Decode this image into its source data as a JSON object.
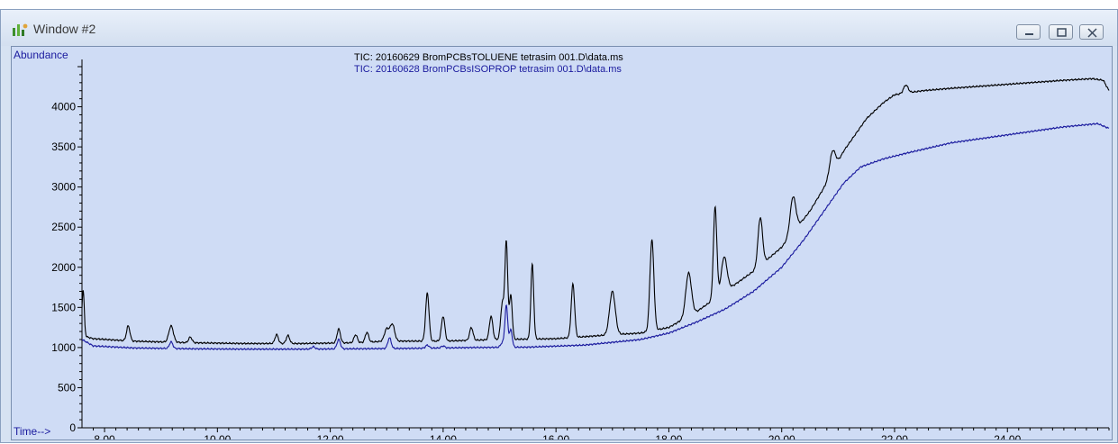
{
  "window": {
    "title": "Window #2",
    "controls": [
      "minimize-icon",
      "restore-icon",
      "close-icon"
    ]
  },
  "colors": {
    "series1": "#000000",
    "series2": "#1a1a9e",
    "plot_bg": "#cfdcf5",
    "axis": "#000000"
  },
  "chart_data": {
    "type": "line",
    "ylabel": "Abundance",
    "xlabel": "Time-->",
    "xlim": [
      7.6,
      25.8
    ],
    "ylim": [
      0,
      4500
    ],
    "x_ticks": [
      "8.00",
      "10.00",
      "12.00",
      "14.00",
      "16.00",
      "18.00",
      "20.00",
      "22.00",
      "24.00"
    ],
    "y_ticks": [
      "0",
      "500",
      "1000",
      "1500",
      "2000",
      "2500",
      "3000",
      "3500",
      "4000"
    ],
    "grid": false,
    "legend": "top-center",
    "series": [
      {
        "name": "TIC: 20160629 BromPCBsTOLUENE tetrasim 001.D\\data.ms",
        "baseline": [
          [
            7.6,
            1150
          ],
          [
            7.8,
            1110
          ],
          [
            8.5,
            1080
          ],
          [
            9.5,
            1060
          ],
          [
            10.5,
            1050
          ],
          [
            11.5,
            1050
          ],
          [
            12.5,
            1060
          ],
          [
            13.0,
            1080
          ],
          [
            14.0,
            1080
          ],
          [
            15.0,
            1100
          ],
          [
            16.0,
            1110
          ],
          [
            17.0,
            1160
          ],
          [
            17.5,
            1180
          ],
          [
            18.0,
            1250
          ],
          [
            18.5,
            1450
          ],
          [
            19.0,
            1700
          ],
          [
            19.5,
            1950
          ],
          [
            20.0,
            2250
          ],
          [
            20.5,
            2700
          ],
          [
            20.8,
            3050
          ],
          [
            21.1,
            3450
          ],
          [
            21.5,
            3850
          ],
          [
            21.8,
            4050
          ],
          [
            22.0,
            4150
          ],
          [
            22.5,
            4200
          ],
          [
            23.0,
            4230
          ],
          [
            24.0,
            4280
          ],
          [
            25.0,
            4330
          ],
          [
            25.5,
            4350
          ],
          [
            25.7,
            4330
          ],
          [
            25.8,
            4200
          ]
        ],
        "peaks": [
          [
            7.62,
            1720,
            0.02
          ],
          [
            8.42,
            1270,
            0.03
          ],
          [
            9.18,
            1270,
            0.04
          ],
          [
            9.52,
            1130,
            0.03
          ],
          [
            11.05,
            1160,
            0.03
          ],
          [
            11.25,
            1150,
            0.03
          ],
          [
            12.15,
            1230,
            0.03
          ],
          [
            12.45,
            1160,
            0.03
          ],
          [
            12.65,
            1190,
            0.03
          ],
          [
            13.0,
            1230,
            0.04
          ],
          [
            13.1,
            1290,
            0.04
          ],
          [
            13.72,
            1680,
            0.03
          ],
          [
            14.0,
            1390,
            0.03
          ],
          [
            14.5,
            1250,
            0.03
          ],
          [
            14.85,
            1390,
            0.03
          ],
          [
            15.05,
            1550,
            0.03
          ],
          [
            15.12,
            2300,
            0.025
          ],
          [
            15.2,
            1650,
            0.025
          ],
          [
            15.58,
            2040,
            0.025
          ],
          [
            16.3,
            1790,
            0.03
          ],
          [
            17.0,
            1700,
            0.05
          ],
          [
            17.7,
            2340,
            0.035
          ],
          [
            18.35,
            1930,
            0.05
          ],
          [
            18.82,
            2750,
            0.03
          ],
          [
            18.98,
            2130,
            0.05
          ],
          [
            19.62,
            2620,
            0.04
          ],
          [
            20.2,
            2880,
            0.05
          ],
          [
            20.9,
            3450,
            0.05
          ],
          [
            22.2,
            4270,
            0.04
          ]
        ]
      },
      {
        "name": "TIC: 20160628 BromPCBsISOPROP tetrasim 001.D\\data.ms",
        "baseline": [
          [
            7.6,
            1100
          ],
          [
            7.8,
            1020
          ],
          [
            8.5,
            995
          ],
          [
            9.5,
            985
          ],
          [
            10.5,
            980
          ],
          [
            11.5,
            980
          ],
          [
            12.5,
            985
          ],
          [
            13.5,
            990
          ],
          [
            14.5,
            1000
          ],
          [
            15.5,
            1005
          ],
          [
            16.5,
            1030
          ],
          [
            17.5,
            1100
          ],
          [
            18.0,
            1180
          ],
          [
            18.5,
            1320
          ],
          [
            19.0,
            1480
          ],
          [
            19.5,
            1700
          ],
          [
            20.0,
            2000
          ],
          [
            20.4,
            2350
          ],
          [
            20.8,
            2750
          ],
          [
            21.1,
            3050
          ],
          [
            21.4,
            3250
          ],
          [
            21.8,
            3350
          ],
          [
            22.2,
            3420
          ],
          [
            23.0,
            3550
          ],
          [
            24.0,
            3650
          ],
          [
            25.0,
            3750
          ],
          [
            25.6,
            3790
          ],
          [
            25.8,
            3730
          ]
        ],
        "peaks": [
          [
            9.18,
            1070,
            0.03
          ],
          [
            11.7,
            1010,
            0.03
          ],
          [
            12.15,
            1100,
            0.03
          ],
          [
            13.05,
            1120,
            0.03
          ],
          [
            13.72,
            1030,
            0.03
          ],
          [
            14.0,
            1020,
            0.03
          ],
          [
            15.05,
            1060,
            0.03
          ],
          [
            15.12,
            1520,
            0.025
          ],
          [
            15.2,
            1220,
            0.025
          ]
        ]
      }
    ]
  }
}
